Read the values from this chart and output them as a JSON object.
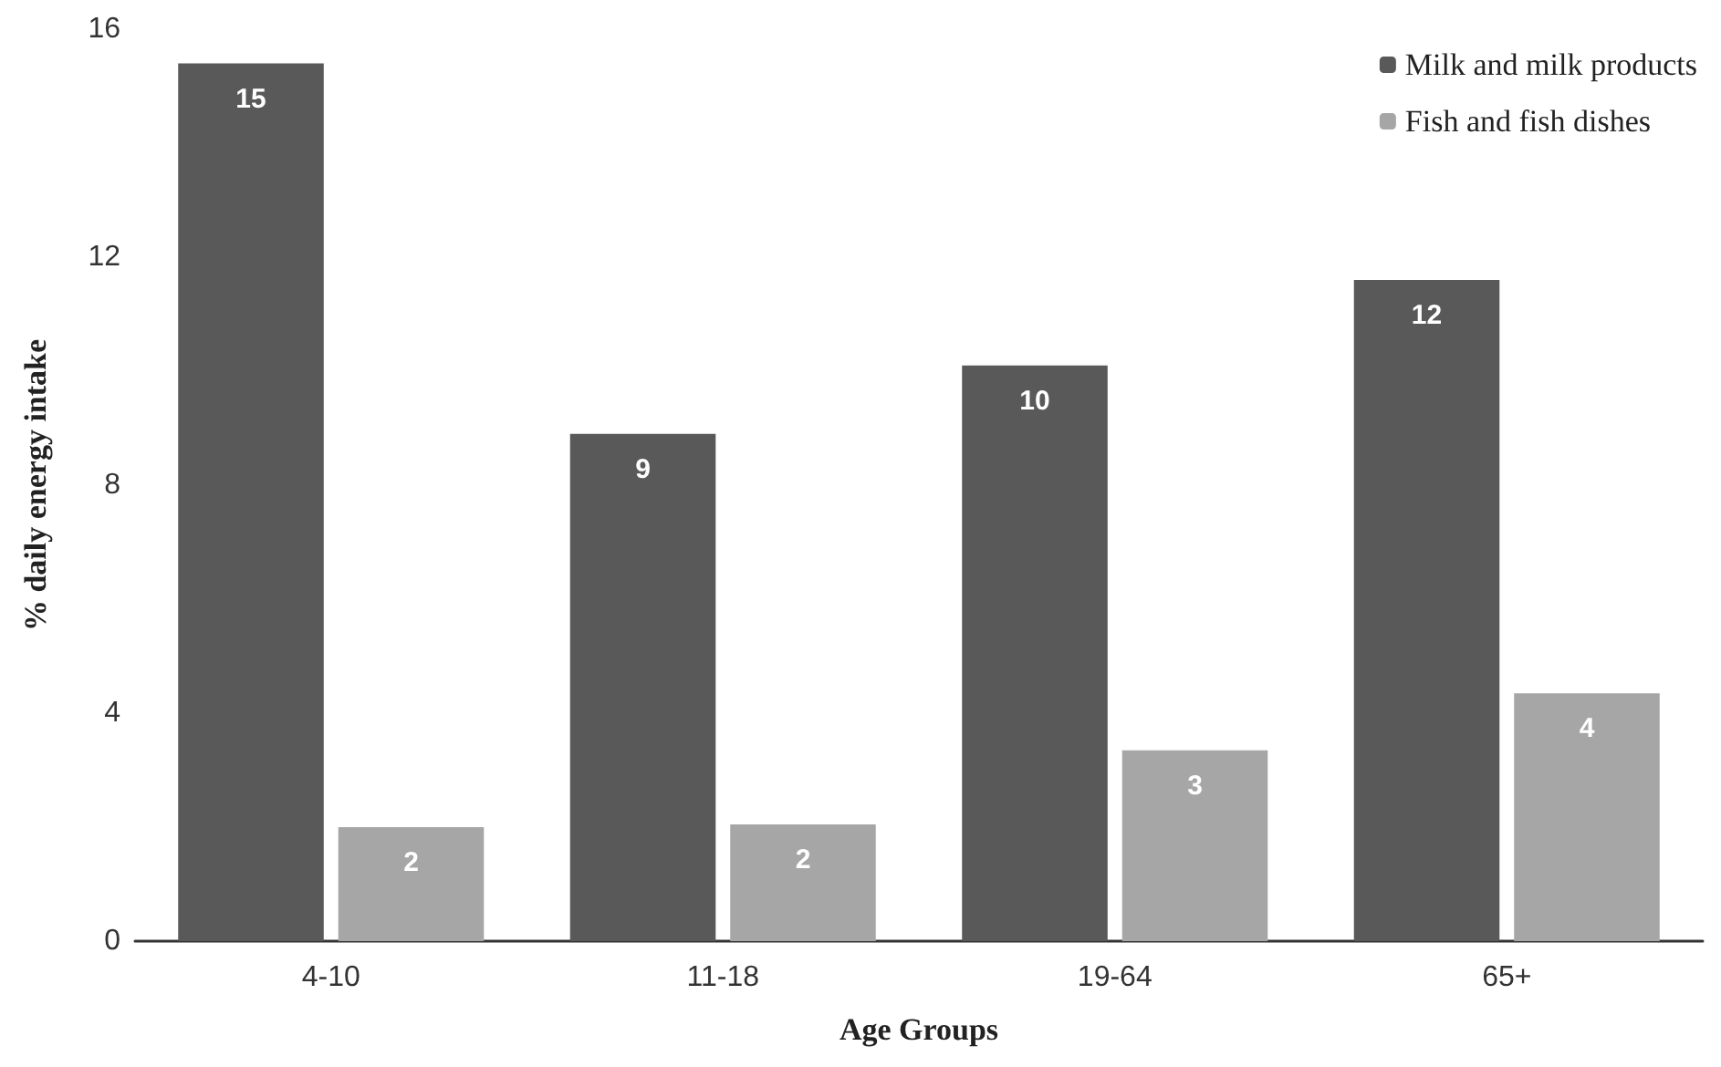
{
  "chart_data": {
    "type": "bar",
    "xlabel": "Age Groups",
    "ylabel": "% daily energy intake",
    "categories": [
      "4-10",
      "11-18",
      "19-64",
      "65+"
    ],
    "series": [
      {
        "name": "Milk and milk products",
        "color": "#595959",
        "values": [
          15.4,
          8.9,
          10.1,
          11.6
        ],
        "value_labels": [
          "15",
          "9",
          "10",
          "12"
        ]
      },
      {
        "name": "Fish and fish dishes",
        "color": "#a6a6a6",
        "values": [
          2.0,
          2.05,
          3.35,
          4.35
        ],
        "value_labels": [
          "2",
          "2",
          "3",
          "4"
        ]
      }
    ],
    "ylim": [
      0,
      16
    ],
    "yticks": [
      0,
      4,
      8,
      12,
      16
    ],
    "grid": false,
    "legend": "top right"
  }
}
